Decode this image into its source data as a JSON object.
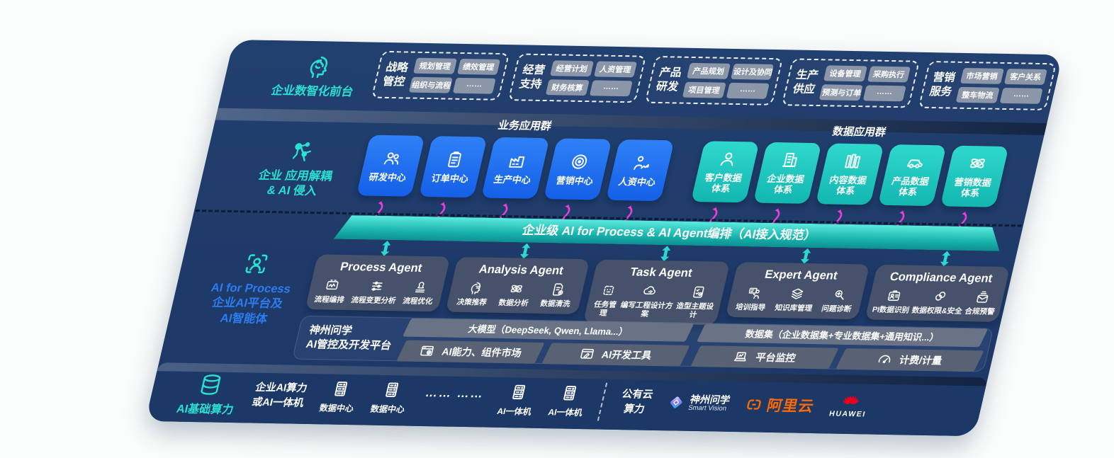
{
  "colors": {
    "panel": "#1F3C6D",
    "accent_teal": "#2BE0D3",
    "accent_blue": "#2D7CF0",
    "box_blue": "#176BF0",
    "box_teal": "#1BC9C1",
    "magenta_arrow": "#EE3DDB",
    "bar_teal": "#1FC9C4",
    "agent_card": "#46516B",
    "alibaba_orange": "#FF6A00",
    "huawei_red": "#E8001F"
  },
  "left_rail": [
    {
      "icon": "head-brain-icon",
      "label_lines": [
        "企业数智化前台"
      ]
    },
    {
      "icon": "molecule-icon",
      "label_lines": [
        "企业 应用解耦",
        "& AI 侵入"
      ]
    },
    {
      "icon": "scan-person-icon",
      "label_lines": [
        "AI for Process",
        "企业AI平台及",
        "AI智能体"
      ]
    }
  ],
  "front_office": {
    "groups": [
      {
        "label_lines": [
          "战略",
          "管控"
        ],
        "chips": [
          "规划管理",
          "绩效管理",
          "组织与流程",
          "……"
        ]
      },
      {
        "label_lines": [
          "经营",
          "支持"
        ],
        "chips": [
          "经营计划",
          "人资管理",
          "财务核算",
          "……"
        ]
      },
      {
        "label_lines": [
          "产品",
          "研发"
        ],
        "chips": [
          "产品规划",
          "设计及协同",
          "项目管理",
          "……"
        ]
      },
      {
        "label_lines": [
          "生产",
          "供应"
        ],
        "chips": [
          "设备管理",
          "采购执行",
          "预测与订单",
          "……"
        ]
      },
      {
        "label_lines": [
          "营销",
          "服务"
        ],
        "chips": [
          "市场营销",
          "客户关系",
          "整车物流",
          "……"
        ]
      }
    ]
  },
  "app_layer": {
    "business": {
      "header": "业务应用群",
      "boxes": [
        {
          "label_lines": [
            "研发中心"
          ],
          "icon": "users-icon"
        },
        {
          "label_lines": [
            "订单中心"
          ],
          "icon": "clipboard-icon"
        },
        {
          "label_lines": [
            "生产中心"
          ],
          "icon": "factory-icon"
        },
        {
          "label_lines": [
            "营销中心"
          ],
          "icon": "target-icon"
        },
        {
          "label_lines": [
            "人资中心"
          ],
          "icon": "hr-trend-icon"
        }
      ]
    },
    "data": {
      "header": "数据应用群",
      "boxes": [
        {
          "label_lines": [
            "客户数据",
            "体系"
          ],
          "icon": "user-icon"
        },
        {
          "label_lines": [
            "企业数据",
            "体系"
          ],
          "icon": "building-icon"
        },
        {
          "label_lines": [
            "内容数据",
            "体系"
          ],
          "icon": "books-icon"
        },
        {
          "label_lines": [
            "产品数据",
            "体系"
          ],
          "icon": "car-icon"
        },
        {
          "label_lines": [
            "营销数据",
            "体系"
          ],
          "icon": "atom-icon"
        }
      ]
    }
  },
  "orchestration_bar": {
    "text": "企业级 AI for Process & AI Agent编排（AI接入规范）"
  },
  "agent_layer": {
    "agents": [
      {
        "title": "Process Agent",
        "items": [
          {
            "label": "流程编排",
            "icon": "monitor-wave-icon"
          },
          {
            "label": "流程变更分析",
            "icon": "sliders-icon"
          },
          {
            "label": "流程优化",
            "icon": "stamp-icon"
          }
        ]
      },
      {
        "title": "Analysis Agent",
        "items": [
          {
            "label": "决策推荐",
            "icon": "head-chat-icon"
          },
          {
            "label": "数据分析",
            "icon": "atom-icon"
          },
          {
            "label": "数据清洗",
            "icon": "doc-gear-icon"
          }
        ]
      },
      {
        "title": "Task Agent",
        "items": [
          {
            "label": "任务管理",
            "icon": "bot-grid-icon"
          },
          {
            "label": "编写工程设计方案",
            "icon": "cloud-pen-icon"
          },
          {
            "label": "造型主题设计",
            "icon": "checklist-icon"
          }
        ]
      },
      {
        "title": "Expert Agent",
        "items": [
          {
            "label": "培训指导",
            "icon": "presenter-icon"
          },
          {
            "label": "知识库管理",
            "icon": "layers-icon"
          },
          {
            "label": "问题诊断",
            "icon": "magnify-gear-icon"
          }
        ]
      },
      {
        "title": "Compliance Agent",
        "items": [
          {
            "label": "PI数据识别",
            "icon": "id-card-icon"
          },
          {
            "label": "数据权限&安全",
            "icon": "link-circles-icon"
          },
          {
            "label": "合规预警",
            "icon": "mail-lines-icon"
          }
        ]
      }
    ]
  },
  "platform": {
    "label_lines": [
      "神州问学",
      "AI管控及开发平台"
    ],
    "model_bar": "大模型（DeepSeek, Qwen, Llama...）",
    "left_cells": [
      {
        "label": "AI能力、组件市场",
        "icon": "window-gear-icon"
      },
      {
        "label": "AI开发工具",
        "icon": "window-pen-icon"
      }
    ],
    "dataset_bar": "数据集（企业数据集+专业数据集+通用知识...）",
    "right_cells": [
      {
        "label": "平台监控",
        "icon": "laptop-chart-icon"
      },
      {
        "label": "计费/计量",
        "icon": "gauge-icon"
      }
    ]
  },
  "infrastructure": {
    "label": "AI基础算力",
    "icon": "database-icon",
    "compute_lines": [
      "企业AI算力",
      "或AI一体机"
    ],
    "nodes": [
      {
        "label": "数据中心",
        "icon": "server-icon"
      },
      {
        "label": "数据中心",
        "icon": "server-icon"
      },
      {
        "label": "…… ……",
        "icon": ""
      },
      {
        "label": "AI一体机",
        "icon": "server-icon"
      },
      {
        "label": "AI一体机",
        "icon": "server-icon"
      }
    ],
    "public_cloud_lines": [
      "公有云",
      "算力"
    ],
    "logos": [
      {
        "id": "smart-vision-logo",
        "text": "神州问学",
        "subtext": "Smart Vision"
      },
      {
        "id": "alibaba-cloud-logo",
        "text": "阿里云"
      },
      {
        "id": "huawei-logo",
        "text": "HUAWEI"
      }
    ]
  }
}
